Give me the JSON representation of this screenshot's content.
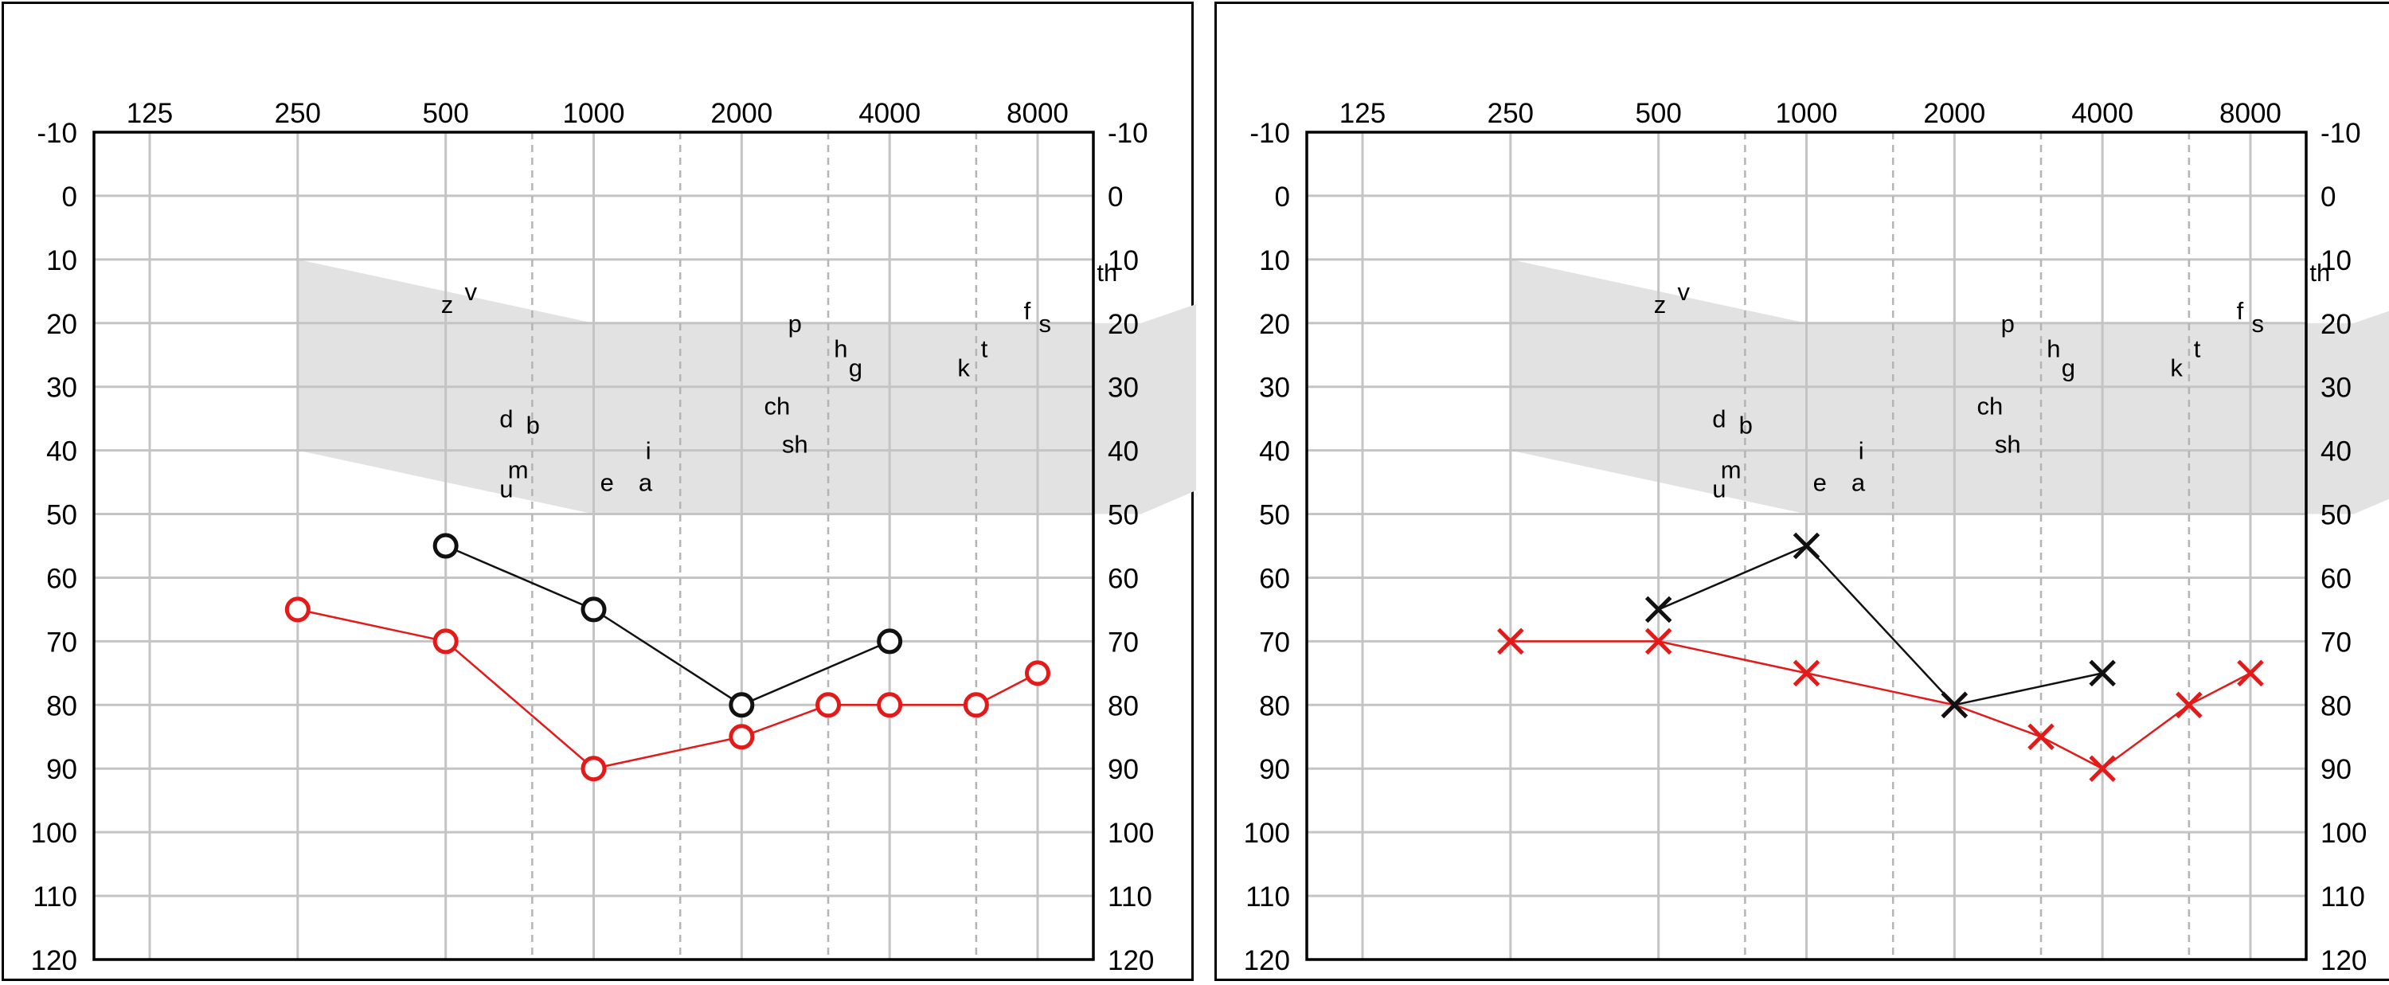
{
  "frequency_labels": [
    "125",
    "250",
    "500",
    "1000",
    "2000",
    "4000",
    "8000"
  ],
  "colors": {
    "right_ear": "#e21a1a",
    "left_ear": "#111111",
    "banana": "#e2e2e2",
    "grid": "#c4c4c4",
    "interoctave_grid": "#b4b4b4"
  },
  "speech_sounds": [
    {
      "label": "z",
      "f_oct": 2.01,
      "db": 17
    },
    {
      "label": "v",
      "f_oct": 2.17,
      "db": 15
    },
    {
      "label": "d",
      "f_oct": 2.41,
      "db": 35
    },
    {
      "label": "b",
      "f_oct": 2.59,
      "db": 36
    },
    {
      "label": "m",
      "f_oct": 2.49,
      "db": 43
    },
    {
      "label": "u",
      "f_oct": 2.41,
      "db": 46
    },
    {
      "label": "e",
      "f_oct": 3.09,
      "db": 45
    },
    {
      "label": "a",
      "f_oct": 3.35,
      "db": 45
    },
    {
      "label": "i",
      "f_oct": 3.37,
      "db": 40
    },
    {
      "label": "p",
      "f_oct": 4.36,
      "db": 20
    },
    {
      "label": "h",
      "f_oct": 4.67,
      "db": 24
    },
    {
      "label": "g",
      "f_oct": 4.77,
      "db": 27
    },
    {
      "label": "ch",
      "f_oct": 4.24,
      "db": 33
    },
    {
      "label": "sh",
      "f_oct": 4.36,
      "db": 39
    },
    {
      "label": "k",
      "f_oct": 5.5,
      "db": 27
    },
    {
      "label": "t",
      "f_oct": 5.64,
      "db": 24
    },
    {
      "label": "f",
      "f_oct": 5.93,
      "db": 18
    },
    {
      "label": "s",
      "f_oct": 6.05,
      "db": 20
    },
    {
      "label": "th",
      "f_oct": 6.47,
      "db": 12
    }
  ],
  "chart_data": [
    {
      "type": "line",
      "x": [
        "125",
        "250",
        "500",
        "1000",
        "2000",
        "4000",
        "8000"
      ],
      "ylim": [
        -10,
        120
      ],
      "yticks": [
        -10,
        0,
        10,
        20,
        30,
        40,
        50,
        60,
        70,
        80,
        90,
        100,
        110,
        120
      ],
      "y_inverted": true,
      "grid": true,
      "series": [
        {
          "color": "#e21a1a",
          "marker": "circle",
          "points": [
            [
              250,
              65
            ],
            [
              500,
              70
            ],
            [
              1000,
              90
            ],
            [
              2000,
              85
            ],
            [
              3000,
              80
            ],
            [
              4000,
              80
            ],
            [
              6000,
              80
            ],
            [
              8000,
              75
            ]
          ]
        },
        {
          "color": "#111111",
          "marker": "circle",
          "points": [
            [
              500,
              55
            ],
            [
              1000,
              65
            ],
            [
              2000,
              80
            ],
            [
              4000,
              70
            ]
          ]
        }
      ]
    },
    {
      "type": "line",
      "x": [
        "125",
        "250",
        "500",
        "1000",
        "2000",
        "4000",
        "8000"
      ],
      "ylim": [
        -10,
        120
      ],
      "yticks": [
        -10,
        0,
        10,
        20,
        30,
        40,
        50,
        60,
        70,
        80,
        90,
        100,
        110,
        120
      ],
      "y_inverted": true,
      "grid": true,
      "series": [
        {
          "color": "#e21a1a",
          "marker": "x",
          "points": [
            [
              250,
              70
            ],
            [
              500,
              70
            ],
            [
              1000,
              75
            ],
            [
              2000,
              80
            ],
            [
              3000,
              85
            ],
            [
              4000,
              90
            ],
            [
              6000,
              80
            ],
            [
              8000,
              75
            ]
          ]
        },
        {
          "color": "#111111",
          "marker": "x",
          "points": [
            [
              500,
              65
            ],
            [
              1000,
              55
            ],
            [
              2000,
              80
            ],
            [
              4000,
              75
            ]
          ]
        }
      ]
    }
  ]
}
